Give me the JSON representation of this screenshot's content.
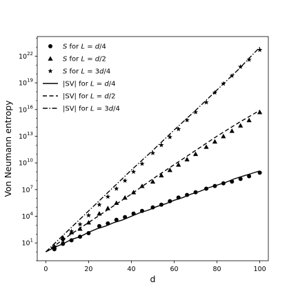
{
  "chart_data": {
    "type": "line",
    "title": "",
    "xlabel": "d",
    "ylabel": "Von Neumann entropy",
    "yscale": "log",
    "xlim": [
      -4,
      104
    ],
    "ylim_log10": [
      -1.0,
      24.2
    ],
    "xticks": [
      "0",
      "20",
      "40",
      "60",
      "80",
      "100"
    ],
    "xtick_values": [
      0,
      20,
      40,
      60,
      80,
      100
    ],
    "yticks": [
      {
        "base": "10",
        "exp": "1",
        "log10": 1
      },
      {
        "base": "10",
        "exp": "4",
        "log10": 4
      },
      {
        "base": "10",
        "exp": "7",
        "log10": 7
      },
      {
        "base": "10",
        "exp": "10",
        "log10": 10
      },
      {
        "base": "10",
        "exp": "13",
        "log10": 13
      },
      {
        "base": "10",
        "exp": "16",
        "log10": 16
      },
      {
        "base": "10",
        "exp": "19",
        "log10": 19
      },
      {
        "base": "10",
        "exp": "22",
        "log10": 22
      }
    ],
    "legend_position": "top-left",
    "series": [
      {
        "name": "S for L=d/4",
        "label_parts": [
          [
            "it",
            "S"
          ],
          [
            "n",
            " for "
          ],
          [
            "it",
            "L"
          ],
          [
            "n",
            " = "
          ],
          [
            "it",
            "d"
          ],
          [
            "n",
            "/4"
          ]
        ],
        "kind": "marker",
        "marker": "circle",
        "x": [
          4,
          8,
          12,
          16,
          20,
          25,
          29,
          33,
          37,
          41,
          45,
          50,
          54,
          58,
          62,
          66,
          70,
          75,
          79,
          83,
          87,
          91,
          95,
          100
        ],
        "log10_y": [
          0.3,
          0.9,
          1.3,
          1.7,
          2.1,
          2.9,
          3.2,
          3.6,
          3.9,
          4.3,
          4.6,
          5.0,
          5.3,
          5.7,
          6.1,
          6.4,
          6.7,
          7.1,
          7.4,
          7.7,
          7.9,
          8.2,
          8.5,
          8.9
        ]
      },
      {
        "name": "S for L=d/2",
        "label_parts": [
          [
            "it",
            "S"
          ],
          [
            "n",
            " for "
          ],
          [
            "it",
            "L"
          ],
          [
            "n",
            " = "
          ],
          [
            "it",
            "d"
          ],
          [
            "n",
            "/2"
          ]
        ],
        "kind": "marker",
        "marker": "triangle",
        "x": [
          4,
          8,
          12,
          16,
          20,
          25,
          29,
          33,
          37,
          41,
          45,
          50,
          54,
          58,
          62,
          66,
          70,
          75,
          79,
          83,
          87,
          91,
          95,
          100
        ],
        "log10_y": [
          0.6,
          1.6,
          2.2,
          2.6,
          3.3,
          4.3,
          4.9,
          5.5,
          6.1,
          6.7,
          7.4,
          7.9,
          8.6,
          9.2,
          9.8,
          10.4,
          11.0,
          11.8,
          12.4,
          13.0,
          13.6,
          14.2,
          14.8,
          15.7
        ]
      },
      {
        "name": "S for L=3d/4",
        "label_parts": [
          [
            "it",
            "S"
          ],
          [
            "n",
            " for "
          ],
          [
            "it",
            "L"
          ],
          [
            "n",
            " = 3"
          ],
          [
            "it",
            "d"
          ],
          [
            "n",
            "/4"
          ]
        ],
        "kind": "marker",
        "marker": "star",
        "x": [
          4,
          8,
          12,
          16,
          20,
          25,
          29,
          33,
          37,
          41,
          45,
          50,
          54,
          58,
          62,
          66,
          70,
          75,
          79,
          83,
          87,
          91,
          95,
          100
        ],
        "log10_y": [
          0.6,
          1.3,
          2.3,
          3.1,
          4.1,
          5.3,
          6.2,
          7.1,
          8.0,
          9.0,
          9.9,
          11.1,
          12.0,
          12.9,
          13.8,
          14.8,
          15.7,
          16.8,
          17.9,
          18.9,
          19.8,
          20.8,
          21.6,
          22.7
        ]
      },
      {
        "name": "|SV| for L=d/4",
        "label_parts": [
          [
            "n",
            "|SV| for "
          ],
          [
            "it",
            "L"
          ],
          [
            "n",
            " = "
          ],
          [
            "it",
            "d"
          ],
          [
            "n",
            "/4"
          ]
        ],
        "kind": "line",
        "dash": "solid",
        "x": [
          0,
          4,
          8,
          12,
          16,
          20,
          24,
          28,
          32,
          36,
          40,
          44,
          48,
          52,
          56,
          60,
          64,
          68,
          72,
          76,
          80,
          84,
          88,
          92,
          96,
          100
        ],
        "log10_y": [
          0.0,
          0.5,
          0.9,
          1.4,
          1.7,
          2.2,
          2.6,
          2.9,
          3.3,
          3.6,
          4.0,
          4.4,
          4.7,
          5.1,
          5.4,
          5.8,
          6.1,
          6.5,
          6.8,
          7.2,
          7.5,
          7.8,
          8.2,
          8.5,
          8.8,
          9.1
        ]
      },
      {
        "name": "|SV| for L=d/2",
        "label_parts": [
          [
            "n",
            "|SV| for "
          ],
          [
            "it",
            "L"
          ],
          [
            "n",
            " = "
          ],
          [
            "it",
            "d"
          ],
          [
            "n",
            "/2"
          ]
        ],
        "kind": "line",
        "dash": "dashed",
        "x": [
          0,
          10,
          20,
          30,
          40,
          50,
          60,
          70,
          80,
          90,
          100
        ],
        "log10_y": [
          0.0,
          1.7,
          3.3,
          4.9,
          6.5,
          8.2,
          9.8,
          11.4,
          13.0,
          14.5,
          15.9
        ]
      },
      {
        "name": "|SV| for L=3d/4",
        "label_parts": [
          [
            "n",
            "|SV| for "
          ],
          [
            "it",
            "L"
          ],
          [
            "n",
            " = 3"
          ],
          [
            "it",
            "d"
          ],
          [
            "n",
            "/4"
          ]
        ],
        "kind": "line",
        "dash": "dashdot",
        "x": [
          0,
          10,
          20,
          30,
          40,
          50,
          60,
          70,
          80,
          90,
          100
        ],
        "log10_y": [
          0.0,
          2.3,
          4.6,
          6.9,
          9.2,
          11.4,
          13.7,
          15.9,
          18.2,
          20.5,
          23.0
        ]
      }
    ]
  }
}
